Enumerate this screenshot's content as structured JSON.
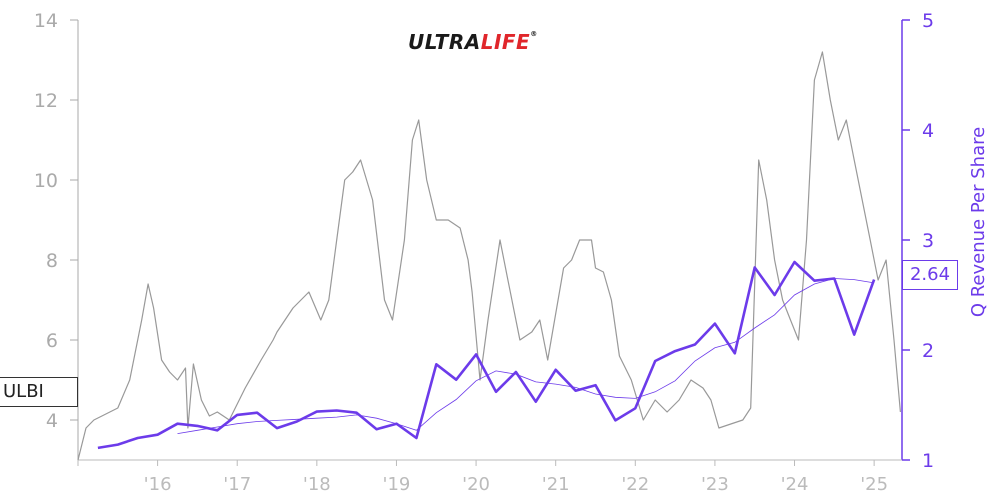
{
  "logo": {
    "part1": "ULTRA",
    "part2": "LIFE",
    "mark": "®"
  },
  "ticker": "ULBI",
  "current_value": "2.64",
  "colors": {
    "price": "#999999",
    "revenue": "#6c3bea",
    "axis_left": "#aaaaaa",
    "axis_right": "#6c3bea",
    "xtick": "#bbbbbb"
  },
  "chart_data": {
    "type": "line",
    "xlabel": "",
    "ylabel": "",
    "y2label": "Q Revenue Per Share",
    "x_ticks": [
      "'16",
      "'17",
      "'18",
      "'19",
      "'20",
      "'21",
      "'22",
      "'23",
      "'24",
      "'25"
    ],
    "x_range": [
      2015.0,
      2025.35
    ],
    "ylim": [
      3,
      14
    ],
    "y_ticks": [
      "4",
      "6",
      "8",
      "10",
      "12",
      "14"
    ],
    "y2lim": [
      1,
      5
    ],
    "y2_ticks": [
      "1",
      "2",
      "3",
      "4",
      "5"
    ],
    "grid": false,
    "series": [
      {
        "name": "ULBI",
        "axis": "left",
        "x": [
          2015.0,
          2015.1,
          2015.2,
          2015.3,
          2015.5,
          2015.65,
          2015.8,
          2015.88,
          2015.95,
          2016.05,
          2016.15,
          2016.25,
          2016.35,
          2016.38,
          2016.45,
          2016.55,
          2016.65,
          2016.75,
          2016.9,
          2017.1,
          2017.3,
          2017.45,
          2017.5,
          2017.7,
          2017.9,
          2018.05,
          2018.15,
          2018.25,
          2018.35,
          2018.45,
          2018.55,
          2018.7,
          2018.85,
          2018.95,
          2019.1,
          2019.2,
          2019.28,
          2019.38,
          2019.5,
          2019.65,
          2019.8,
          2019.9,
          2019.95,
          2020.05,
          2020.15,
          2020.3,
          2020.4,
          2020.55,
          2020.7,
          2020.8,
          2020.9,
          2021.1,
          2021.2,
          2021.3,
          2021.45,
          2021.5,
          2021.6,
          2021.7,
          2021.8,
          2021.95,
          2022.1,
          2022.25,
          2022.4,
          2022.55,
          2022.7,
          2022.85,
          2022.95,
          2023.05,
          2023.2,
          2023.35,
          2023.45,
          2023.55,
          2023.65,
          2023.75,
          2023.85,
          2023.95,
          2024.05,
          2024.15,
          2024.25,
          2024.35,
          2024.45,
          2024.55,
          2024.65,
          2024.75,
          2024.85,
          2024.95,
          2025.05,
          2025.15,
          2025.25,
          2025.33
        ],
        "values": [
          3.0,
          3.8,
          4.0,
          4.1,
          4.3,
          5.0,
          6.5,
          7.4,
          6.8,
          5.5,
          5.2,
          5.0,
          5.3,
          3.8,
          5.4,
          4.5,
          4.1,
          4.2,
          4.0,
          4.8,
          5.5,
          6.0,
          6.2,
          6.8,
          7.2,
          6.5,
          7.0,
          8.5,
          10.0,
          10.2,
          10.5,
          9.5,
          7.0,
          6.5,
          8.5,
          11.0,
          11.5,
          10.0,
          9.0,
          9.0,
          8.8,
          8.0,
          7.2,
          5.0,
          6.5,
          8.5,
          7.5,
          6.0,
          6.2,
          6.5,
          5.5,
          7.8,
          8.0,
          8.5,
          8.5,
          7.8,
          7.7,
          7.0,
          5.6,
          5.0,
          4.0,
          4.5,
          4.2,
          4.5,
          5.0,
          4.8,
          4.5,
          3.8,
          3.9,
          4.0,
          4.3,
          10.5,
          9.5,
          8.0,
          7.0,
          6.5,
          6.0,
          8.5,
          12.5,
          13.2,
          12.0,
          11.0,
          11.5,
          10.5,
          9.5,
          8.5,
          7.5,
          8.0,
          6.0,
          4.2
        ]
      },
      {
        "name": "Q Revenue Per Share",
        "axis": "right",
        "x": [
          2015.25,
          2015.5,
          2015.75,
          2016.0,
          2016.25,
          2016.5,
          2016.75,
          2017.0,
          2017.25,
          2017.5,
          2017.75,
          2018.0,
          2018.25,
          2018.5,
          2018.75,
          2019.0,
          2019.25,
          2019.5,
          2019.75,
          2020.0,
          2020.25,
          2020.5,
          2020.75,
          2021.0,
          2021.25,
          2021.5,
          2021.75,
          2022.0,
          2022.25,
          2022.5,
          2022.75,
          2023.0,
          2023.25,
          2023.5,
          2023.75,
          2024.0,
          2024.25,
          2024.5,
          2024.75,
          2025.0
        ],
        "values": [
          1.11,
          1.14,
          1.2,
          1.23,
          1.33,
          1.31,
          1.27,
          1.41,
          1.43,
          1.29,
          1.35,
          1.44,
          1.45,
          1.43,
          1.28,
          1.33,
          1.2,
          1.87,
          1.73,
          1.96,
          1.62,
          1.8,
          1.53,
          1.82,
          1.63,
          1.68,
          1.36,
          1.47,
          1.9,
          1.99,
          2.05,
          2.24,
          1.97,
          2.75,
          2.5,
          2.8,
          2.63,
          2.65,
          2.14,
          2.64
        ]
      },
      {
        "name": "",
        "axis": "right",
        "x": [
          2016.25,
          2016.5,
          2016.75,
          2017.0,
          2017.25,
          2017.5,
          2017.75,
          2018.0,
          2018.25,
          2018.5,
          2018.75,
          2019.0,
          2019.25,
          2019.5,
          2019.75,
          2020.0,
          2020.25,
          2020.5,
          2020.75,
          2021.0,
          2021.25,
          2021.5,
          2021.75,
          2022.0,
          2022.25,
          2022.5,
          2022.75,
          2023.0,
          2023.25,
          2023.5,
          2023.75,
          2024.0,
          2024.25,
          2024.5,
          2024.75,
          2025.0
        ],
        "values": [
          1.24,
          1.27,
          1.3,
          1.33,
          1.35,
          1.36,
          1.37,
          1.38,
          1.39,
          1.41,
          1.38,
          1.33,
          1.27,
          1.43,
          1.55,
          1.72,
          1.81,
          1.78,
          1.71,
          1.69,
          1.66,
          1.6,
          1.57,
          1.56,
          1.62,
          1.72,
          1.9,
          2.02,
          2.07,
          2.2,
          2.32,
          2.5,
          2.6,
          2.65,
          2.64,
          2.61
        ]
      }
    ]
  }
}
